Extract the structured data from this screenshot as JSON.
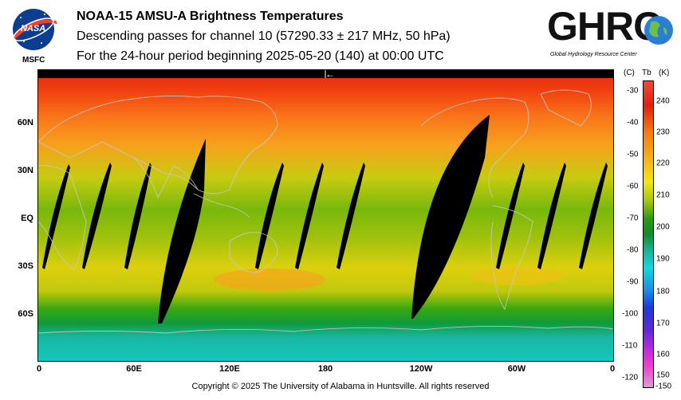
{
  "header": {
    "title": "NOAA-15 AMSU-A Brightness Temperatures",
    "subtitle": "Descending passes for channel 10 (57290.33 ± 217 MHz, 50 hPa)",
    "period": "For the 24-hour period beginning 2025-05-20 (140) at 00:00 UTC"
  },
  "logos": {
    "nasa_label": "NASA",
    "nasa_sub": "MSFC",
    "ghrc_label": "GHRC",
    "ghrc_sub": "Global Hydrology Resource Center"
  },
  "map": {
    "x_ticks": [
      "0",
      "60E",
      "120E",
      "180",
      "120W",
      "60W",
      "0"
    ],
    "y_ticks": [
      "60N",
      "30N",
      "EQ",
      "30S",
      "60S"
    ],
    "direction_arrow": "←"
  },
  "colorbar": {
    "header_c": "(C)",
    "header_tb": "Tb",
    "header_k": "(K)",
    "celsius_ticks": [
      "-30",
      "-40",
      "-50",
      "-60",
      "-70",
      "-80",
      "-90",
      "-100",
      "-110",
      "-120",
      "-150"
    ],
    "kelvin_ticks": [
      "240",
      "230",
      "220",
      "210",
      "200",
      "190",
      "180",
      "170",
      "160",
      "150"
    ]
  },
  "footer": {
    "copyright": "Copyright © 2025 The University of Alabama in Huntsville.  All rights reserved"
  }
}
